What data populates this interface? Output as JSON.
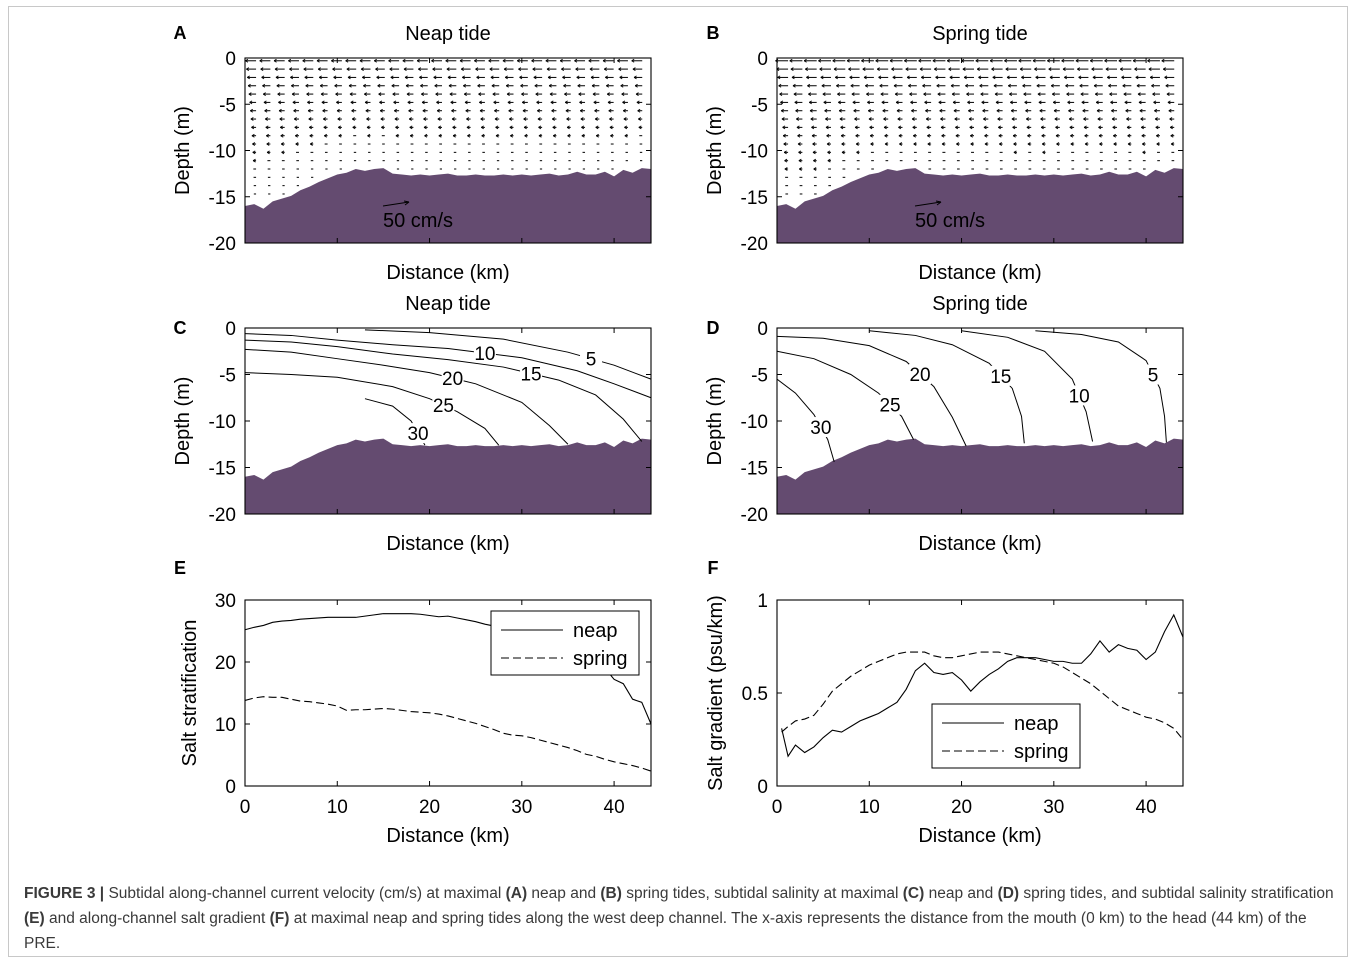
{
  "chart_data": [
    {
      "panel": "A",
      "type": "quiver",
      "title": "Neap tide",
      "xlabel": "Distance (km)",
      "ylabel": "Depth (m)",
      "xlim": [
        0,
        44
      ],
      "ylim": [
        -20,
        0
      ],
      "yticks": [
        0,
        -5,
        -10,
        -15,
        -20
      ],
      "scale_label": "50 cm/s",
      "scale_value": 50,
      "bathymetry": {
        "x": [
          0,
          1,
          2,
          3,
          4,
          5,
          6,
          7,
          8,
          9,
          10,
          11,
          12,
          13,
          14,
          15,
          16,
          17,
          18,
          19,
          20,
          21,
          22,
          23,
          24,
          25,
          26,
          27,
          28,
          29,
          30,
          31,
          32,
          33,
          34,
          35,
          36,
          37,
          38,
          39,
          40,
          41,
          42,
          43,
          44
        ],
        "depth": [
          -16,
          -15.8,
          -16.3,
          -15.5,
          -15.2,
          -14.9,
          -14.3,
          -13.9,
          -13.4,
          -13.0,
          -12.6,
          -12.4,
          -12.0,
          -12.2,
          -12.0,
          -11.9,
          -12.5,
          -12.6,
          -12.7,
          -12.6,
          -12.7,
          -12.6,
          -12.5,
          -12.7,
          -12.7,
          -12.6,
          -12.7,
          -12.7,
          -12.6,
          -12.7,
          -12.6,
          -12.7,
          -12.6,
          -12.5,
          -12.7,
          -12.6,
          -12.3,
          -12.6,
          -12.6,
          -12.3,
          -12.8,
          -12.1,
          -12.4,
          -11.9,
          -12.0
        ]
      }
    },
    {
      "panel": "B",
      "type": "quiver",
      "title": "Spring tide",
      "xlabel": "Distance (km)",
      "ylabel": "Depth (m)",
      "xlim": [
        0,
        44
      ],
      "ylim": [
        -20,
        0
      ],
      "yticks": [
        0,
        -5,
        -10,
        -15,
        -20
      ],
      "scale_label": "50 cm/s",
      "scale_value": 50
    },
    {
      "panel": "C",
      "type": "contour",
      "title": "Neap tide",
      "xlabel": "Distance (km)",
      "ylabel": "Depth (m)",
      "xlim": [
        0,
        44
      ],
      "ylim": [
        -20,
        0
      ],
      "yticks": [
        0,
        -5,
        -10,
        -15,
        -20
      ],
      "contours": [
        {
          "level": "5",
          "x": [
            13,
            20,
            28,
            35,
            40,
            44
          ],
          "y": [
            -0.2,
            -0.5,
            -1.2,
            -2.6,
            -4.0,
            -5.5
          ]
        },
        {
          "level": "10",
          "x": [
            0,
            5,
            10,
            16,
            22,
            30,
            36,
            40,
            44
          ],
          "y": [
            -0.6,
            -0.8,
            -1.3,
            -1.8,
            -2.2,
            -3.2,
            -4.6,
            -6.0,
            -7.5
          ]
        },
        {
          "level": "15",
          "x": [
            0,
            5,
            10,
            16,
            22,
            28,
            34,
            38,
            41,
            43
          ],
          "y": [
            -1.3,
            -1.5,
            -2.0,
            -2.8,
            -3.4,
            -4.2,
            -5.6,
            -7.2,
            -9.8,
            -12.2
          ]
        },
        {
          "level": "20",
          "x": [
            0,
            5,
            10,
            15,
            20,
            25,
            30,
            33,
            35
          ],
          "y": [
            -2.3,
            -2.6,
            -3.3,
            -4.0,
            -4.8,
            -6.0,
            -8.0,
            -10.5,
            -12.5
          ]
        },
        {
          "level": "25",
          "x": [
            0,
            5,
            10,
            16,
            20,
            23,
            26,
            27.5
          ],
          "y": [
            -4.8,
            -5.0,
            -5.3,
            -6.3,
            -7.6,
            -9.0,
            -10.8,
            -12.6
          ]
        },
        {
          "level": "30",
          "x": [
            13,
            16,
            18,
            19.5
          ],
          "y": [
            -7.6,
            -8.4,
            -10.0,
            -12.6
          ]
        }
      ]
    },
    {
      "panel": "D",
      "type": "contour",
      "title": "Spring tide",
      "xlabel": "Distance (km)",
      "ylabel": "Depth (m)",
      "xlim": [
        0,
        44
      ],
      "ylim": [
        -20,
        0
      ],
      "yticks": [
        0,
        -5,
        -10,
        -15,
        -20
      ],
      "contours": [
        {
          "level": "5",
          "x": [
            28,
            33,
            37,
            40,
            41.5,
            42,
            42.2
          ],
          "y": [
            -0.3,
            -0.7,
            -1.5,
            -3.5,
            -6.5,
            -9.5,
            -12.3
          ]
        },
        {
          "level": "10",
          "x": [
            20,
            25,
            29,
            32,
            33.5,
            34.2
          ],
          "y": [
            -0.3,
            -1.0,
            -2.5,
            -5.5,
            -9.0,
            -12.2
          ]
        },
        {
          "level": "15",
          "x": [
            10,
            15,
            19,
            23,
            25.5,
            26.5,
            26.8
          ],
          "y": [
            -0.3,
            -0.8,
            -1.8,
            -3.8,
            -6.5,
            -9.5,
            -12.4
          ]
        },
        {
          "level": "20",
          "x": [
            0,
            5,
            10,
            14,
            17,
            19,
            20.5
          ],
          "y": [
            -0.9,
            -1.1,
            -1.9,
            -3.6,
            -6.3,
            -9.6,
            -12.7
          ]
        },
        {
          "level": "25",
          "x": [
            0,
            4,
            8,
            11,
            13.5,
            14.8
          ],
          "y": [
            -2.5,
            -3.3,
            -5.0,
            -7.0,
            -9.5,
            -12.0
          ]
        },
        {
          "level": "30",
          "x": [
            0,
            2,
            4,
            5.5,
            6.2
          ],
          "y": [
            -5.5,
            -7.0,
            -9.3,
            -12.0,
            -14.4
          ]
        }
      ]
    },
    {
      "panel": "E",
      "type": "line",
      "xlabel": "Distance (km)",
      "ylabel": "Salt stratification",
      "xlim": [
        0,
        44
      ],
      "ylim": [
        0,
        30
      ],
      "xticks": [
        0,
        10,
        20,
        30,
        40
      ],
      "yticks": [
        0,
        10,
        20,
        30
      ],
      "legend": "top-right",
      "x": [
        0,
        1,
        2,
        3,
        4,
        5,
        6,
        7,
        8,
        9,
        10,
        11,
        12,
        13,
        14,
        15,
        16,
        17,
        18,
        19,
        20,
        21,
        22,
        23,
        24,
        25,
        26,
        27,
        28,
        29,
        30,
        31,
        32,
        33,
        34,
        35,
        36,
        37,
        38,
        39,
        40,
        41,
        42,
        43,
        44
      ],
      "series": [
        {
          "name": "neap",
          "dash": "solid",
          "values": [
            25.2,
            25.6,
            25.9,
            26.4,
            26.6,
            26.7,
            26.9,
            27.0,
            27.1,
            27.2,
            27.2,
            27.2,
            27.2,
            27.4,
            27.6,
            27.8,
            27.8,
            27.8,
            27.8,
            27.7,
            27.5,
            27.3,
            27.4,
            27.1,
            26.8,
            26.5,
            26.1,
            25.8,
            25.6,
            25.4,
            25.1,
            24.7,
            24.4,
            24.0,
            23.4,
            22.6,
            21.8,
            20.7,
            19.7,
            19.0,
            17.2,
            16.5,
            14.0,
            13.5,
            10.0
          ]
        },
        {
          "name": "spring",
          "dash": "dashed",
          "values": [
            13.8,
            14.2,
            14.4,
            14.3,
            14.3,
            14.0,
            13.7,
            13.6,
            13.4,
            13.2,
            12.9,
            12.2,
            12.3,
            12.3,
            12.4,
            12.5,
            12.4,
            12.2,
            12.0,
            11.9,
            11.8,
            11.6,
            11.3,
            10.9,
            10.5,
            10.1,
            9.6,
            9.1,
            8.5,
            8.2,
            8.1,
            7.8,
            7.4,
            7.0,
            6.6,
            6.2,
            5.7,
            5.1,
            4.8,
            4.3,
            3.9,
            3.6,
            3.3,
            2.9,
            2.4
          ]
        }
      ]
    },
    {
      "panel": "F",
      "type": "line",
      "xlabel": "Distance (km)",
      "ylabel": "Salt gradient (psu/km)",
      "xlim": [
        0,
        44
      ],
      "ylim": [
        0,
        1
      ],
      "xticks": [
        0,
        10,
        20,
        30,
        40
      ],
      "yticks": [
        0,
        0.5,
        1
      ],
      "legend": "bottom-center",
      "series": [
        {
          "name": "neap",
          "dash": "solid",
          "x": [
            0.5,
            1.2,
            2,
            3,
            4,
            5,
            6,
            7,
            8,
            9,
            10,
            11,
            12,
            13,
            14,
            15,
            16,
            17,
            18,
            19,
            20,
            21,
            22,
            23,
            24,
            25,
            26,
            27,
            28,
            29,
            30,
            31,
            32,
            33,
            34,
            35,
            36,
            37,
            38,
            39,
            40,
            41,
            42,
            43,
            44
          ],
          "values": [
            0.31,
            0.16,
            0.22,
            0.18,
            0.21,
            0.26,
            0.3,
            0.29,
            0.32,
            0.35,
            0.37,
            0.39,
            0.42,
            0.45,
            0.52,
            0.62,
            0.66,
            0.61,
            0.6,
            0.61,
            0.57,
            0.51,
            0.56,
            0.6,
            0.63,
            0.67,
            0.69,
            0.69,
            0.69,
            0.68,
            0.67,
            0.67,
            0.66,
            0.66,
            0.71,
            0.78,
            0.72,
            0.76,
            0.74,
            0.73,
            0.68,
            0.72,
            0.83,
            0.92,
            0.8
          ]
        },
        {
          "name": "spring",
          "dash": "dashed",
          "x": [
            0.5,
            1.2,
            2,
            3,
            4,
            5,
            6,
            7,
            8,
            9,
            10,
            11,
            12,
            13,
            14,
            15,
            16,
            17,
            18,
            19,
            20,
            21,
            22,
            23,
            24,
            25,
            26,
            27,
            28,
            29,
            30,
            31,
            32,
            33,
            34,
            35,
            36,
            37,
            38,
            39,
            40,
            41,
            42,
            43,
            44
          ],
          "values": [
            0.29,
            0.32,
            0.35,
            0.36,
            0.38,
            0.44,
            0.51,
            0.55,
            0.59,
            0.62,
            0.65,
            0.67,
            0.69,
            0.71,
            0.72,
            0.72,
            0.72,
            0.7,
            0.69,
            0.69,
            0.7,
            0.71,
            0.72,
            0.72,
            0.72,
            0.71,
            0.7,
            0.69,
            0.68,
            0.67,
            0.66,
            0.64,
            0.61,
            0.58,
            0.55,
            0.51,
            0.47,
            0.43,
            0.41,
            0.39,
            0.37,
            0.36,
            0.34,
            0.31,
            0.25
          ]
        }
      ]
    }
  ],
  "panel_letters": [
    "A",
    "B",
    "C",
    "D",
    "E",
    "F"
  ],
  "caption": {
    "label": "FIGURE 3 |",
    "parts": [
      " Subtidal along-channel current velocity (cm/s) at maximal ",
      "(A)",
      " neap and ",
      "(B)",
      " spring tides, subtidal salinity at maximal ",
      "(C)",
      " neap and ",
      "(D)",
      " spring tides, and subtidal salinity stratification ",
      "(E)",
      " and along-channel salt gradient ",
      "(F)",
      " at maximal neap and spring tides along the west deep channel. The x-axis represents the distance from the mouth (0 km) to the head (44 km) of the PRE."
    ]
  },
  "colors": {
    "bathymetry": "#644b70",
    "axes": "#000000",
    "caption_text": "#3a3a3a"
  }
}
